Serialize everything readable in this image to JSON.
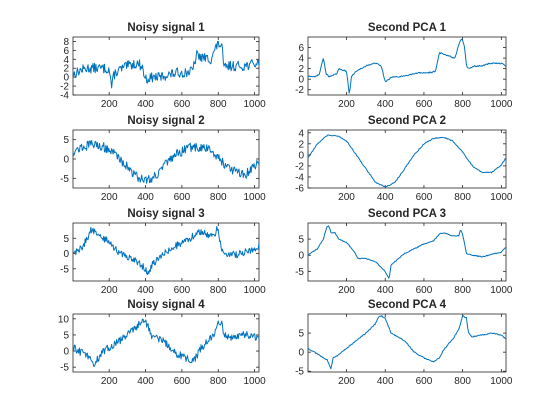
{
  "colors": {
    "line": "#0072BD",
    "axis": "#262626",
    "background": "#ffffff"
  },
  "chart_data": [
    {
      "type": "line",
      "title": "Noisy signal 1",
      "xlim": [
        1,
        1024
      ],
      "ylim": [
        -4,
        9
      ],
      "xticks": [
        200,
        400,
        600,
        800,
        1000
      ],
      "yticks": [
        -4,
        -2,
        0,
        2,
        4,
        6,
        8
      ],
      "noise": 1.1,
      "series": [
        {
          "x": [
            1,
            40,
            80,
            120,
            160,
            200,
            215,
            225,
            250,
            300,
            340,
            360,
            380,
            400,
            440,
            480,
            520,
            580,
            620,
            660,
            680,
            700,
            760,
            780,
            800,
            820,
            830,
            860,
            900,
            940,
            1000,
            1024
          ],
          "y": [
            0.5,
            1.5,
            2,
            2,
            2,
            1.8,
            -2.5,
            0.5,
            1.5,
            2.5,
            3,
            3,
            2.5,
            -0.5,
            0,
            0,
            0.5,
            1,
            1,
            1.5,
            5,
            4.5,
            4,
            6,
            7.5,
            7,
            2,
            2.5,
            2.5,
            2.5,
            3,
            3
          ]
        }
      ]
    },
    {
      "type": "line",
      "title": "Second PCA 1",
      "xlim": [
        1,
        1024
      ],
      "ylim": [
        -3,
        8
      ],
      "xticks": [
        200,
        400,
        600,
        800,
        1000
      ],
      "yticks": [
        -2,
        0,
        2,
        4,
        6
      ],
      "noise": 0.12,
      "series": [
        {
          "x": [
            1,
            40,
            60,
            80,
            95,
            110,
            150,
            160,
            200,
            215,
            225,
            250,
            300,
            340,
            360,
            380,
            400,
            440,
            480,
            520,
            580,
            620,
            660,
            680,
            700,
            760,
            780,
            790,
            800,
            810,
            820,
            830,
            860,
            900,
            940,
            1000,
            1024
          ],
          "y": [
            0.5,
            0.5,
            1,
            4,
            1,
            0.5,
            1,
            2,
            1.5,
            -3,
            0.5,
            1.5,
            2.5,
            3,
            3,
            2.5,
            -0.5,
            0.5,
            0.5,
            0.8,
            1.2,
            1.2,
            1.5,
            5,
            4.8,
            4,
            6.5,
            7.5,
            7.5,
            6,
            2.5,
            2,
            2.5,
            2.5,
            3,
            3,
            2.5
          ]
        }
      ]
    },
    {
      "type": "line",
      "title": "Noisy signal 2",
      "xlim": [
        1,
        1024
      ],
      "ylim": [
        -7.5,
        7.5
      ],
      "xticks": [
        200,
        400,
        600,
        800,
        1000
      ],
      "yticks": [
        -5,
        0,
        5
      ],
      "noise": 1.2,
      "series": [
        {
          "x": [
            1,
            50,
            100,
            150,
            200,
            250,
            300,
            350,
            400,
            450,
            500,
            550,
            600,
            650,
            700,
            750,
            800,
            850,
            900,
            950,
            1000,
            1024
          ],
          "y": [
            2,
            3,
            3.8,
            3.5,
            2.5,
            0.5,
            -2,
            -4.5,
            -5.5,
            -4.5,
            -2,
            0.5,
            2,
            3,
            3,
            2.5,
            0.5,
            -2,
            -3.5,
            -4,
            -2,
            -0.5
          ]
        }
      ]
    },
    {
      "type": "line",
      "title": "Second PCA 2",
      "xlim": [
        1,
        1024
      ],
      "ylim": [
        -6,
        4.5
      ],
      "xticks": [
        200,
        400,
        600,
        800,
        1000
      ],
      "yticks": [
        -6,
        -4,
        -2,
        0,
        2,
        4
      ],
      "noise": 0.1,
      "series": [
        {
          "x": [
            1,
            50,
            100,
            150,
            200,
            250,
            300,
            350,
            400,
            450,
            500,
            550,
            600,
            650,
            700,
            750,
            800,
            850,
            900,
            950,
            1000,
            1024
          ],
          "y": [
            -0.5,
            2,
            3.5,
            3.5,
            2.5,
            0,
            -2.5,
            -5,
            -5.8,
            -5,
            -2.5,
            0,
            2,
            3,
            3.2,
            2.5,
            0.5,
            -2,
            -3.2,
            -3.2,
            -1.8,
            -0.5
          ]
        }
      ]
    },
    {
      "type": "line",
      "title": "Noisy signal 3",
      "xlim": [
        1,
        1024
      ],
      "ylim": [
        -9,
        10
      ],
      "xticks": [
        200,
        400,
        600,
        800,
        1000
      ],
      "yticks": [
        -5,
        0,
        5
      ],
      "noise": 1.1,
      "series": [
        {
          "x": [
            1,
            50,
            80,
            100,
            120,
            160,
            200,
            240,
            260,
            300,
            350,
            400,
            420,
            430,
            450,
            500,
            550,
            600,
            650,
            680,
            700,
            750,
            780,
            790,
            800,
            820,
            850,
            900,
            1000,
            1024
          ],
          "y": [
            0,
            2,
            5,
            8,
            7,
            5,
            4,
            1,
            0,
            -1,
            -2.5,
            -5,
            -7,
            -4,
            -3,
            0,
            2,
            3.5,
            5,
            7,
            7,
            6,
            6,
            8,
            7,
            1,
            0,
            -0.5,
            1.5,
            2.5
          ]
        }
      ]
    },
    {
      "type": "line",
      "title": "Second PCA 3",
      "xlim": [
        1,
        1024
      ],
      "ylim": [
        -8,
        10
      ],
      "xticks": [
        200,
        400,
        600,
        800,
        1000
      ],
      "yticks": [
        -5,
        0,
        5
      ],
      "noise": 0.15,
      "series": [
        {
          "x": [
            1,
            50,
            80,
            100,
            110,
            120,
            140,
            160,
            200,
            240,
            260,
            300,
            350,
            400,
            420,
            430,
            450,
            500,
            550,
            600,
            650,
            680,
            700,
            750,
            780,
            790,
            800,
            820,
            850,
            900,
            1000,
            1024
          ],
          "y": [
            0,
            2,
            5,
            9,
            9,
            7,
            7,
            5,
            4,
            1,
            -1,
            -1,
            -2,
            -5,
            -7.5,
            -3,
            -2,
            0.5,
            2,
            3.5,
            4.5,
            6.5,
            7,
            6,
            6,
            8,
            6.5,
            0.5,
            0,
            -0.5,
            1,
            2.5
          ]
        }
      ]
    },
    {
      "type": "line",
      "title": "Noisy signal 4",
      "xlim": [
        1,
        1024
      ],
      "ylim": [
        -6.5,
        11.5
      ],
      "xticks": [
        200,
        400,
        600,
        800,
        1000
      ],
      "yticks": [
        -5,
        0,
        5,
        10
      ],
      "noise": 1.2,
      "series": [
        {
          "x": [
            1,
            50,
            100,
            120,
            150,
            200,
            250,
            300,
            350,
            380,
            400,
            430,
            500,
            550,
            600,
            650,
            680,
            700,
            750,
            780,
            800,
            820,
            830,
            850,
            900,
            950,
            1000,
            1024
          ],
          "y": [
            1,
            -0.5,
            -2,
            -4.5,
            -1,
            1,
            3,
            5,
            7.5,
            9.5,
            9.5,
            5,
            3,
            0,
            -1.5,
            -3,
            -2,
            0.5,
            3.5,
            5.5,
            9.5,
            9,
            5,
            4,
            4.5,
            5,
            4.5,
            3.5
          ]
        }
      ]
    },
    {
      "type": "line",
      "title": "Second PCA 4",
      "xlim": [
        1,
        1024
      ],
      "ylim": [
        -5.2,
        10
      ],
      "xticks": [
        200,
        400,
        600,
        800,
        1000
      ],
      "yticks": [
        -5,
        0,
        5
      ],
      "noise": 0.15,
      "series": [
        {
          "x": [
            1,
            50,
            100,
            120,
            130,
            150,
            200,
            250,
            300,
            350,
            370,
            380,
            400,
            430,
            500,
            550,
            600,
            650,
            680,
            700,
            750,
            780,
            800,
            820,
            830,
            850,
            900,
            950,
            1000,
            1024
          ],
          "y": [
            1,
            -0.5,
            -2,
            -4.5,
            -1.5,
            -1,
            1,
            3,
            5,
            7.5,
            9.5,
            9.5,
            9,
            5,
            3,
            0,
            -1.5,
            -2.5,
            -1.5,
            0.5,
            3.5,
            6,
            9.5,
            9,
            5,
            4,
            4.5,
            5,
            4.5,
            3.5
          ]
        }
      ]
    }
  ]
}
